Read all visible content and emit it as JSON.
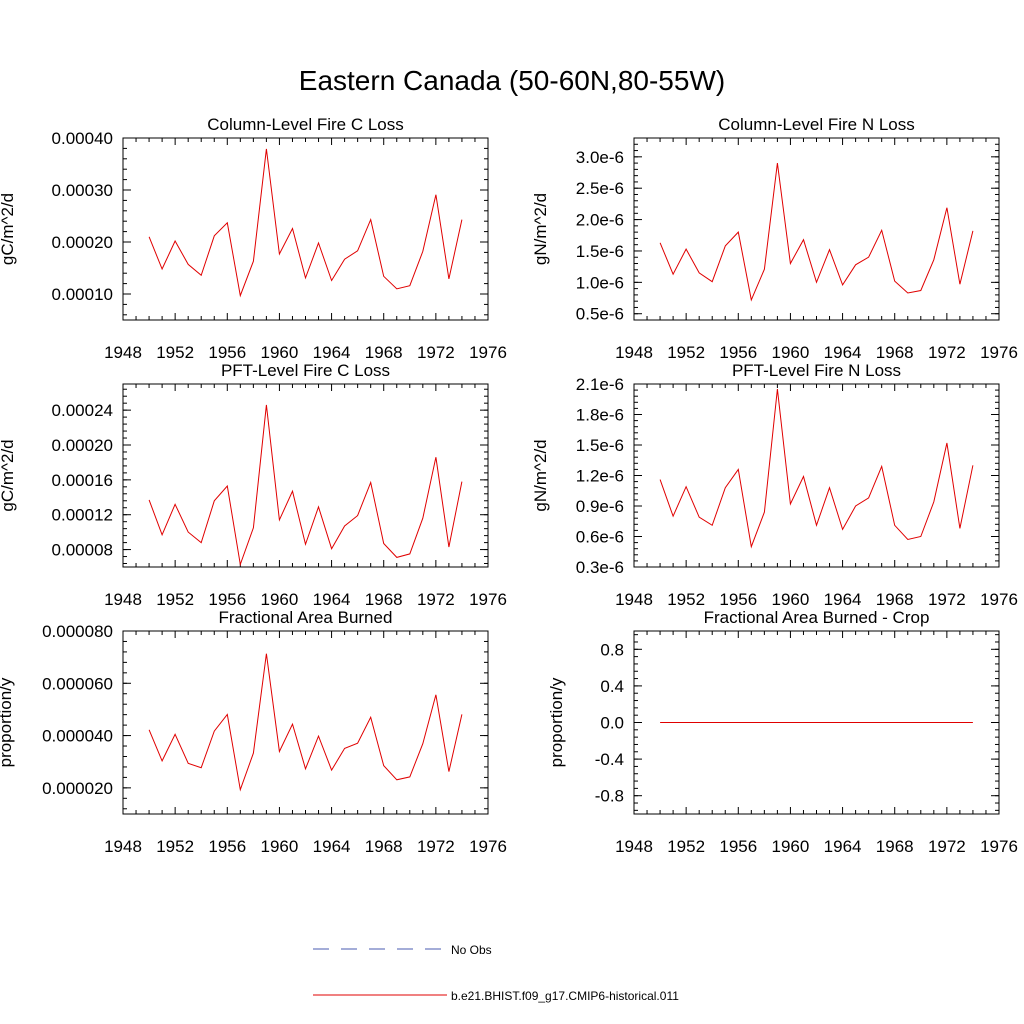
{
  "figure": {
    "title": "Eastern Canada (50-60N,80-55W)",
    "line_color": "#e00000",
    "obs_color": "#4a5bb0"
  },
  "legend": [
    {
      "label": "No Obs",
      "style": "dashed",
      "color": "#4a5bb0"
    },
    {
      "label": "b.e21.BHIST.f09_g17.CMIP6-historical.011",
      "style": "solid",
      "color": "#e00000"
    }
  ],
  "chart_data": [
    {
      "type": "line",
      "title": "Column-Level Fire C Loss",
      "ylabel": "gC/m^2/d",
      "xlim": [
        1948,
        1976
      ],
      "xticks": [
        1948,
        1952,
        1956,
        1960,
        1964,
        1968,
        1972,
        1976
      ],
      "ylim": [
        5e-05,
        0.0004
      ],
      "yticks": [
        0.0001,
        0.0002,
        0.0003,
        0.0004
      ],
      "ytick_labels": [
        "0.00010",
        "0.00020",
        "0.00030",
        "0.00040"
      ],
      "x": [
        1950,
        1951,
        1952,
        1953,
        1954,
        1955,
        1956,
        1957,
        1958,
        1959,
        1960,
        1961,
        1962,
        1963,
        1964,
        1965,
        1966,
        1967,
        1968,
        1969,
        1970,
        1971,
        1972,
        1973,
        1974
      ],
      "series": [
        {
          "values": [
            0.00021,
            0.000148,
            0.000202,
            0.000157,
            0.000136,
            0.000212,
            0.000237,
            9.7e-05,
            0.000163,
            0.000379,
            0.000177,
            0.000226,
            0.000131,
            0.000198,
            0.000126,
            0.000167,
            0.000183,
            0.000243,
            0.000134,
            0.00011,
            0.000116,
            0.000182,
            0.000291,
            0.000129,
            0.000243
          ]
        }
      ]
    },
    {
      "type": "line",
      "title": "Column-Level Fire N Loss",
      "ylabel": "gN/m^2/d",
      "xlim": [
        1948,
        1976
      ],
      "xticks": [
        1948,
        1952,
        1956,
        1960,
        1964,
        1968,
        1972,
        1976
      ],
      "ylim": [
        4e-07,
        3.3e-06
      ],
      "yticks": [
        5e-07,
        1e-06,
        1.5e-06,
        2e-06,
        2.5e-06,
        3e-06
      ],
      "ytick_labels": [
        "0.5e-6",
        "1.0e-6",
        "1.5e-6",
        "2.0e-6",
        "2.5e-6",
        "3.0e-6"
      ],
      "x": [
        1950,
        1951,
        1952,
        1953,
        1954,
        1955,
        1956,
        1957,
        1958,
        1959,
        1960,
        1961,
        1962,
        1963,
        1964,
        1965,
        1966,
        1967,
        1968,
        1969,
        1970,
        1971,
        1972,
        1973,
        1974
      ],
      "series": [
        {
          "values": [
            1.63e-06,
            1.13e-06,
            1.53e-06,
            1.15e-06,
            1.01e-06,
            1.58e-06,
            1.8e-06,
            7.2e-07,
            1.21e-06,
            2.9e-06,
            1.3e-06,
            1.68e-06,
            1e-06,
            1.52e-06,
            9.6e-07,
            1.28e-06,
            1.4e-06,
            1.83e-06,
            1.02e-06,
            8.3e-07,
            8.7e-07,
            1.36e-06,
            2.19e-06,
            9.7e-07,
            1.82e-06
          ]
        }
      ]
    },
    {
      "type": "line",
      "title": "PFT-Level Fire C Loss",
      "ylabel": "gC/m^2/d",
      "xlim": [
        1948,
        1976
      ],
      "xticks": [
        1948,
        1952,
        1956,
        1960,
        1964,
        1968,
        1972,
        1976
      ],
      "ylim": [
        6e-05,
        0.00027
      ],
      "yticks": [
        8e-05,
        0.00012,
        0.00016,
        0.0002,
        0.00024
      ],
      "ytick_labels": [
        "0.00008",
        "0.00012",
        "0.00016",
        "0.00020",
        "0.00024"
      ],
      "x": [
        1950,
        1951,
        1952,
        1953,
        1954,
        1955,
        1956,
        1957,
        1958,
        1959,
        1960,
        1961,
        1962,
        1963,
        1964,
        1965,
        1966,
        1967,
        1968,
        1969,
        1970,
        1971,
        1972,
        1973,
        1974
      ],
      "series": [
        {
          "values": [
            0.000137,
            9.7e-05,
            0.000132,
            0.0001,
            8.8e-05,
            0.000136,
            0.000153,
            6.3e-05,
            0.000105,
            0.000246,
            0.000114,
            0.000147,
            8.6e-05,
            0.000129,
            8.1e-05,
            0.000107,
            0.000119,
            0.000157,
            8.7e-05,
            7.1e-05,
            7.5e-05,
            0.000116,
            0.000186,
            8.3e-05,
            0.000158
          ]
        }
      ]
    },
    {
      "type": "line",
      "title": "PFT-Level Fire N Loss",
      "ylabel": "gN/m^2/d",
      "xlim": [
        1948,
        1976
      ],
      "xticks": [
        1948,
        1952,
        1956,
        1960,
        1964,
        1968,
        1972,
        1976
      ],
      "ylim": [
        3e-07,
        2.1e-06
      ],
      "yticks": [
        3e-07,
        6e-07,
        9e-07,
        1.2e-06,
        1.5e-06,
        1.8e-06,
        2.1e-06
      ],
      "ytick_labels": [
        "0.3e-6",
        "0.6e-6",
        "0.9e-6",
        "1.2e-6",
        "1.5e-6",
        "1.8e-6",
        "2.1e-6"
      ],
      "x": [
        1950,
        1951,
        1952,
        1953,
        1954,
        1955,
        1956,
        1957,
        1958,
        1959,
        1960,
        1961,
        1962,
        1963,
        1964,
        1965,
        1966,
        1967,
        1968,
        1969,
        1970,
        1971,
        1972,
        1973,
        1974
      ],
      "series": [
        {
          "values": [
            1.16e-06,
            8e-07,
            1.09e-06,
            7.9e-07,
            7.1e-07,
            1.08e-06,
            1.26e-06,
            5e-07,
            8.4e-07,
            2.05e-06,
            9.2e-07,
            1.19e-06,
            7.1e-07,
            1.08e-06,
            6.7e-07,
            9e-07,
            9.8e-07,
            1.29e-06,
            7.1e-07,
            5.7e-07,
            6e-07,
            9.4e-07,
            1.52e-06,
            6.8e-07,
            1.3e-06
          ]
        }
      ]
    },
    {
      "type": "line",
      "title": "Fractional Area Burned",
      "ylabel": "proportion/y",
      "xlim": [
        1948,
        1976
      ],
      "xticks": [
        1948,
        1952,
        1956,
        1960,
        1964,
        1968,
        1972,
        1976
      ],
      "ylim": [
        1e-05,
        8e-05
      ],
      "yticks": [
        2e-05,
        4e-05,
        6e-05,
        8e-05
      ],
      "ytick_labels": [
        "0.000020",
        "0.000040",
        "0.000060",
        "0.000080"
      ],
      "x": [
        1950,
        1951,
        1952,
        1953,
        1954,
        1955,
        1956,
        1957,
        1958,
        1959,
        1960,
        1961,
        1962,
        1963,
        1964,
        1965,
        1966,
        1967,
        1968,
        1969,
        1970,
        1971,
        1972,
        1973,
        1974
      ],
      "series": [
        {
          "values": [
            4.22e-05,
            3.03e-05,
            4.05e-05,
            2.94e-05,
            2.77e-05,
            4.17e-05,
            4.81e-05,
            1.93e-05,
            3.33e-05,
            7.13e-05,
            3.39e-05,
            4.44e-05,
            2.73e-05,
            3.98e-05,
            2.68e-05,
            3.51e-05,
            3.71e-05,
            4.7e-05,
            2.85e-05,
            2.31e-05,
            2.42e-05,
            3.69e-05,
            5.56e-05,
            2.62e-05,
            4.81e-05
          ]
        }
      ]
    },
    {
      "type": "line",
      "title": "Fractional Area Burned - Crop",
      "ylabel": "proportion/y",
      "xlim": [
        1948,
        1976
      ],
      "xticks": [
        1948,
        1952,
        1956,
        1960,
        1964,
        1968,
        1972,
        1976
      ],
      "ylim": [
        -1.0,
        1.0
      ],
      "yticks": [
        -0.8,
        -0.4,
        0.0,
        0.4,
        0.8
      ],
      "ytick_labels": [
        "-0.8",
        "-0.4",
        "0.0",
        "0.4",
        "0.8"
      ],
      "x": [
        1950,
        1951,
        1952,
        1953,
        1954,
        1955,
        1956,
        1957,
        1958,
        1959,
        1960,
        1961,
        1962,
        1963,
        1964,
        1965,
        1966,
        1967,
        1968,
        1969,
        1970,
        1971,
        1972,
        1973,
        1974
      ],
      "series": [
        {
          "values": [
            0,
            0,
            0,
            0,
            0,
            0,
            0,
            0,
            0,
            0,
            0,
            0,
            0,
            0,
            0,
            0,
            0,
            0,
            0,
            0,
            0,
            0,
            0,
            0,
            0
          ]
        }
      ]
    }
  ]
}
